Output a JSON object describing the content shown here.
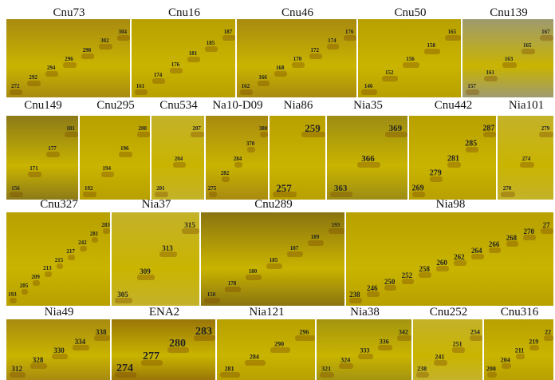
{
  "panels": [
    {
      "title": "Cnu73",
      "bands": [
        "272",
        "292",
        "294",
        "296",
        "298",
        "302",
        "304"
      ]
    },
    {
      "title": "Cnu16",
      "bands": [
        "161",
        "174",
        "176",
        "181",
        "185",
        "187"
      ]
    },
    {
      "title": "Cnu46",
      "bands": [
        "162",
        "166",
        "168",
        "170",
        "172",
        "174",
        "176"
      ]
    },
    {
      "title": "Cnu50",
      "bands": [
        "146",
        "152",
        "156",
        "158",
        "165"
      ]
    },
    {
      "title": "Cnu139",
      "bands": [
        "157",
        "161",
        "163",
        "165",
        "167"
      ]
    },
    {
      "title": "Cnu149",
      "bands": [
        "156",
        "171",
        "177",
        "181"
      ]
    },
    {
      "title": "Cnu295",
      "bands": [
        "192",
        "194",
        "196",
        "200"
      ]
    },
    {
      "title": "Cnu534",
      "bands": [
        "201",
        "204",
        "207"
      ]
    },
    {
      "title": "Na10-D09",
      "bands": [
        "275",
        "282",
        "284",
        "370",
        "380"
      ]
    },
    {
      "title": "Nia86",
      "bands": [
        "257",
        "259"
      ]
    },
    {
      "title": "Nia35",
      "bands": [
        "363",
        "366",
        "369"
      ]
    },
    {
      "title": "Cnu442",
      "bands": [
        "269",
        "279",
        "281",
        "285",
        "287"
      ]
    },
    {
      "title": "Nia101",
      "bands": [
        "270",
        "274",
        "279"
      ]
    },
    {
      "title": "Cnu327",
      "bands": [
        "193",
        "205",
        "209",
        "213",
        "215",
        "217",
        "242",
        "281",
        "283"
      ]
    },
    {
      "title": "Nia37",
      "bands": [
        "305",
        "309",
        "313",
        "315"
      ]
    },
    {
      "title": "Cnu289",
      "bands": [
        "150",
        "178",
        "180",
        "185",
        "187",
        "189",
        "193"
      ]
    },
    {
      "title": "Nia98",
      "bands": [
        "238",
        "246",
        "250",
        "252",
        "258",
        "260",
        "262",
        "264",
        "266",
        "268",
        "270",
        "27"
      ]
    },
    {
      "title": "Nia49",
      "bands": [
        "312",
        "328",
        "330",
        "334",
        "338"
      ]
    },
    {
      "title": "ENA2",
      "bands": [
        "274",
        "277",
        "280",
        "283"
      ]
    },
    {
      "title": "Nia121",
      "bands": [
        "281",
        "284",
        "290",
        "296"
      ]
    },
    {
      "title": "Nia38",
      "bands": [
        "321",
        "324",
        "333",
        "336",
        "342"
      ]
    },
    {
      "title": "Cnu252",
      "bands": [
        "238",
        "241",
        "251",
        "254"
      ]
    },
    {
      "title": "Cnu316",
      "bands": [
        "200",
        "204",
        "211",
        "219",
        "22"
      ]
    }
  ]
}
